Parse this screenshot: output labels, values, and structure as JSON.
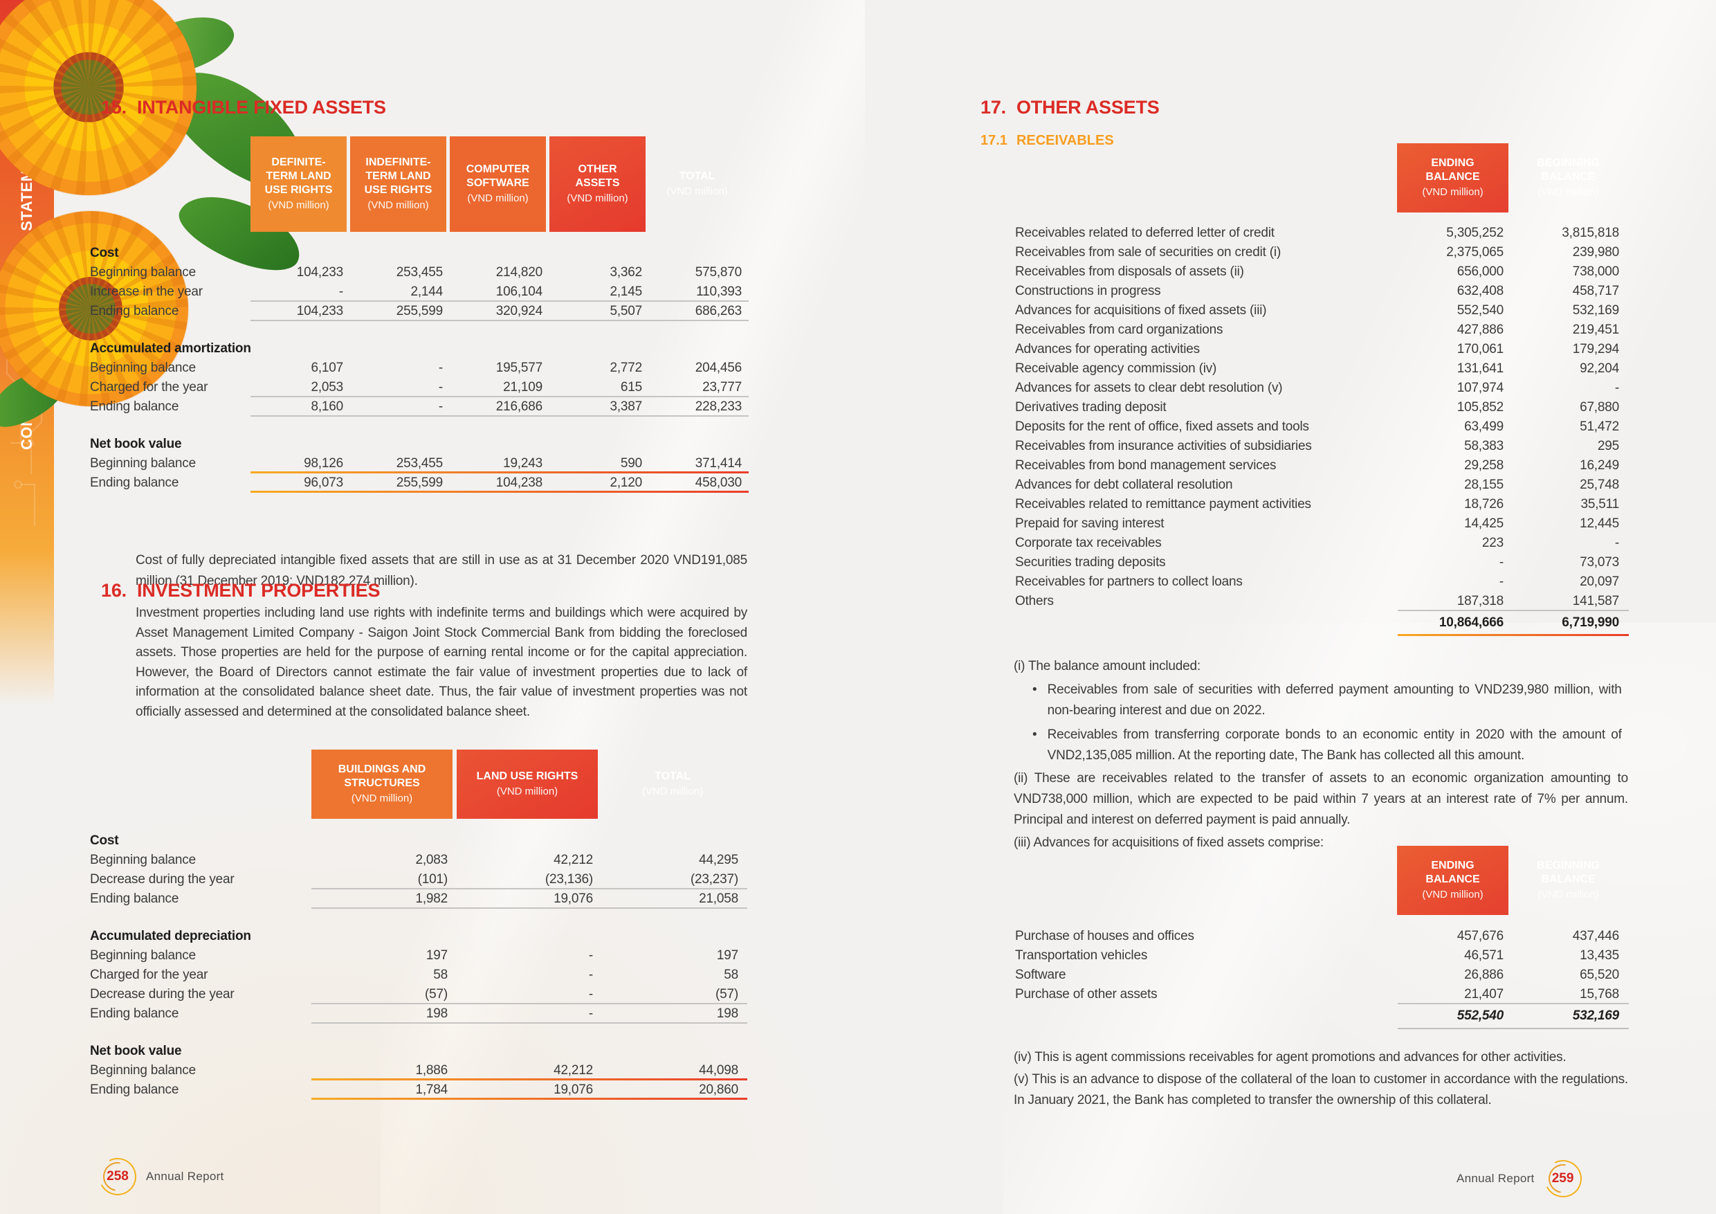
{
  "sidebar": {
    "label": "CONSOLIDATED FINANCIAL STATEMENTS"
  },
  "pl": {
    "s15": {
      "number": "15.",
      "title": "INTANGIBLE FIXED ASSETS",
      "note": "Cost of fully depreciated intangible fixed assets that are still in use as at 31 December 2020 VND191,085 million (31 December 2019: VND182,274 million)."
    },
    "t1": {
      "columns": [
        {
          "title": "DEFINITE-TERM LAND USE RIGHTS",
          "unit": "(VND million)"
        },
        {
          "title": "INDEFINITE-TERM LAND USE RIGHTS",
          "unit": "(VND million)"
        },
        {
          "title": "COMPUTER SOFTWARE",
          "unit": "(VND million)"
        },
        {
          "title": "OTHER ASSETS",
          "unit": "(VND million)"
        },
        {
          "title": "TOTAL",
          "unit": "(VND million)"
        }
      ],
      "rows": [
        {
          "label": "Cost",
          "values": [],
          "cls": "group"
        },
        {
          "label": "Beginning balance",
          "values": [
            "104,233",
            "253,455",
            "214,820",
            "3,362",
            "575,870"
          ],
          "cls": ""
        },
        {
          "label": "Increase in the year",
          "values": [
            "-",
            "2,144",
            "106,104",
            "2,145",
            "110,393"
          ],
          "cls": "rule-gray"
        },
        {
          "label": "Ending balance",
          "values": [
            "104,233",
            "255,599",
            "320,924",
            "5,507",
            "686,263"
          ],
          "cls": "rule-gray"
        },
        {
          "label": "",
          "values": [],
          "cls": "spacer"
        },
        {
          "label": "Accumulated amortization",
          "values": [],
          "cls": "group"
        },
        {
          "label": "Beginning balance",
          "values": [
            "6,107",
            "-",
            "195,577",
            "2,772",
            "204,456"
          ],
          "cls": ""
        },
        {
          "label": "Charged for the year",
          "values": [
            "2,053",
            "-",
            "21,109",
            "615",
            "23,777"
          ],
          "cls": "rule-gray"
        },
        {
          "label": "Ending balance",
          "values": [
            "8,160",
            "-",
            "216,686",
            "3,387",
            "228,233"
          ],
          "cls": "rule-gray"
        },
        {
          "label": "",
          "values": [],
          "cls": "spacer"
        },
        {
          "label": "Net book value",
          "values": [],
          "cls": "group"
        },
        {
          "label": "Beginning balance",
          "values": [
            "98,126",
            "253,455",
            "19,243",
            "590",
            "371,414"
          ],
          "cls": "rule-orange"
        },
        {
          "label": "Ending balance",
          "values": [
            "96,073",
            "255,599",
            "104,238",
            "2,120",
            "458,030"
          ],
          "cls": "rule-orange"
        }
      ]
    },
    "s16": {
      "number": "16.",
      "title": "INVESTMENT PROPERTIES",
      "paragraph": "Investment properties including land use rights with indefinite terms and buildings which were acquired by Asset Management Limited Company - Saigon Joint Stock Commercial Bank from bidding the foreclosed assets. Those properties are held for the purpose of earning rental income or for the capital appreciation. However, the Board of Directors cannot estimate the fair value of investment properties due to lack of information at the consolidated balance sheet date. Thus, the fair value of investment properties was not officially assessed and determined at the consolidated balance sheet."
    },
    "t2": {
      "columns": [
        {
          "title": "BUILDINGS AND STRUCTURES",
          "unit": "(VND million)"
        },
        {
          "title": "LAND USE RIGHTS",
          "unit": "(VND million)"
        },
        {
          "title": "TOTAL",
          "unit": "(VND million)"
        }
      ],
      "rows": [
        {
          "label": "Cost",
          "values": [],
          "cls": "group"
        },
        {
          "label": "Beginning balance",
          "values": [
            "2,083",
            "42,212",
            "44,295"
          ],
          "cls": ""
        },
        {
          "label": "Decrease during the year",
          "values": [
            "(101)",
            "(23,136)",
            "(23,237)"
          ],
          "cls": "rule-gray"
        },
        {
          "label": "Ending balance",
          "values": [
            "1,982",
            "19,076",
            "21,058"
          ],
          "cls": "rule-gray"
        },
        {
          "label": "",
          "values": [],
          "cls": "spacer"
        },
        {
          "label": "Accumulated depreciation",
          "values": [],
          "cls": "group"
        },
        {
          "label": "Beginning balance",
          "values": [
            "197",
            "-",
            "197"
          ],
          "cls": ""
        },
        {
          "label": "Charged for the year",
          "values": [
            "58",
            "-",
            "58"
          ],
          "cls": ""
        },
        {
          "label": "Decrease during the year",
          "values": [
            "(57)",
            "-",
            "(57)"
          ],
          "cls": "rule-gray"
        },
        {
          "label": "Ending balance",
          "values": [
            "198",
            "-",
            "198"
          ],
          "cls": "rule-gray"
        },
        {
          "label": "",
          "values": [],
          "cls": "spacer"
        },
        {
          "label": "Net book value",
          "values": [],
          "cls": "group"
        },
        {
          "label": "Beginning balance",
          "values": [
            "1,886",
            "42,212",
            "44,098"
          ],
          "cls": "rule-orange"
        },
        {
          "label": "Ending balance",
          "values": [
            "1,784",
            "19,076",
            "20,860"
          ],
          "cls": "rule-orange"
        }
      ]
    },
    "footer": {
      "page": "258",
      "label": "Annual Report"
    }
  },
  "pr": {
    "s17": {
      "number": "17.",
      "title": "OTHER ASSETS"
    },
    "s171": {
      "number": "17.1",
      "title": "RECEIVABLES"
    },
    "t3": {
      "columns": [
        {
          "title": "ENDING BALANCE",
          "unit": "(VND million)"
        },
        {
          "title": "BEGINNING BALANCE",
          "unit": "(VND million)"
        }
      ],
      "rows": [
        {
          "label": "Receivables related to deferred letter of credit",
          "values": [
            "5,305,252",
            "3,815,818"
          ],
          "cls": ""
        },
        {
          "label": "Receivables from sale of securities on credit (i)",
          "values": [
            "2,375,065",
            "239,980"
          ],
          "cls": ""
        },
        {
          "label": "Receivables from disposals of assets (ii)",
          "values": [
            "656,000",
            "738,000"
          ],
          "cls": ""
        },
        {
          "label": "Constructions in progress",
          "values": [
            "632,408",
            "458,717"
          ],
          "cls": ""
        },
        {
          "label": "Advances for acquisitions of fixed assets (iii)",
          "values": [
            "552,540",
            "532,169"
          ],
          "cls": ""
        },
        {
          "label": "Receivables from card organizations",
          "values": [
            "427,886",
            "219,451"
          ],
          "cls": ""
        },
        {
          "label": "Advances for operating activities",
          "values": [
            "170,061",
            "179,294"
          ],
          "cls": ""
        },
        {
          "label": "Receivable agency commission (iv)",
          "values": [
            "131,641",
            "92,204"
          ],
          "cls": ""
        },
        {
          "label": "Advances for assets to clear debt resolution (v)",
          "values": [
            "107,974",
            "-"
          ],
          "cls": ""
        },
        {
          "label": "Derivatives trading deposit",
          "values": [
            "105,852",
            "67,880"
          ],
          "cls": ""
        },
        {
          "label": "Deposits for the rent of office, fixed assets and tools",
          "values": [
            "63,499",
            "51,472"
          ],
          "cls": ""
        },
        {
          "label": "Receivables from insurance activities of subsidiaries",
          "values": [
            "58,383",
            "295"
          ],
          "cls": ""
        },
        {
          "label": "Receivables from bond management services",
          "values": [
            "29,258",
            "16,249"
          ],
          "cls": ""
        },
        {
          "label": "Advances for debt collateral resolution",
          "values": [
            "28,155",
            "25,748"
          ],
          "cls": ""
        },
        {
          "label": "Receivables related to remittance payment activities",
          "values": [
            "18,726",
            "35,511"
          ],
          "cls": ""
        },
        {
          "label": "Prepaid for saving interest",
          "values": [
            "14,425",
            "12,445"
          ],
          "cls": ""
        },
        {
          "label": "Corporate tax receivables",
          "values": [
            "223",
            "-"
          ],
          "cls": ""
        },
        {
          "label": "Securities trading deposits",
          "values": [
            "-",
            "73,073"
          ],
          "cls": ""
        },
        {
          "label": "Receivables for partners to collect loans",
          "values": [
            "-",
            "20,097"
          ],
          "cls": ""
        },
        {
          "label": "Others",
          "values": [
            "187,318",
            "141,587"
          ],
          "cls": "rule-gray"
        },
        {
          "label": "",
          "values": [
            "10,864,666",
            "6,719,990"
          ],
          "cls": "total"
        }
      ]
    },
    "notes": {
      "bullet_char": "•",
      "i_intro": "(i)  The balance amount included:",
      "i_bullets": [
        "Receivables from sale of securities with deferred payment amounting to VND239,980 million, with non-bearing interest and due on 2022.",
        "Receivables from transferring corporate bonds to an economic entity in 2020 with the amount of VND2,135,085 million. At the reporting date, The Bank has collected all this amount."
      ],
      "ii": "(ii) These are receivables related to the transfer of assets to an economic organization amounting to VND738,000 million, which are expected to be paid within 7 years at an interest rate of 7% per annum. Principal and interest on deferred payment is paid annually.",
      "iii": "(iii) Advances for acquisitions of fixed assets comprise:",
      "iv": "(iv) This is agent commissions receivables for agent promotions and advances for other activities.",
      "v": "(v) This is an advance to dispose of the collateral of the loan to customer in accordance with the regulations. In January 2021, the Bank has completed to transfer the ownership of this collateral."
    },
    "t4": {
      "columns": [
        {
          "title": "ENDING BALANCE",
          "unit": "(VND million)"
        },
        {
          "title": "BEGINNING BALANCE",
          "unit": "(VND million)"
        }
      ],
      "rows": [
        {
          "label": "Purchase of houses and offices",
          "values": [
            "457,676",
            "437,446"
          ],
          "cls": ""
        },
        {
          "label": "Transportation vehicles",
          "values": [
            "46,571",
            "13,435"
          ],
          "cls": ""
        },
        {
          "label": "Software",
          "values": [
            "26,886",
            "65,520"
          ],
          "cls": ""
        },
        {
          "label": "Purchase of other assets",
          "values": [
            "21,407",
            "15,768"
          ],
          "cls": "rule-gray"
        },
        {
          "label": "",
          "values": [
            "552,540",
            "532,169"
          ],
          "cls": "total2 italic"
        }
      ]
    },
    "footer": {
      "page": "259",
      "label": "Annual Report"
    }
  }
}
